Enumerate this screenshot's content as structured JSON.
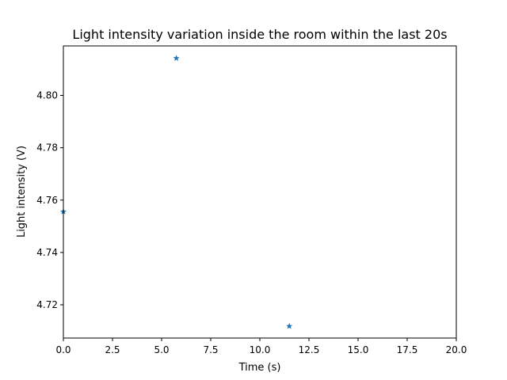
{
  "chart_data": {
    "type": "scatter",
    "title": "Light intensity variation inside the room within the last 20s",
    "xlabel": "Time (s)",
    "ylabel": "Light intensity (V)",
    "xlim": [
      0,
      20
    ],
    "ylim": [
      4.7073,
      4.8189
    ],
    "x_ticks": [
      "0.0",
      "2.5",
      "5.0",
      "7.5",
      "10.0",
      "12.5",
      "15.0",
      "17.5",
      "20.0"
    ],
    "y_ticks": [
      "4.72",
      "4.74",
      "4.76",
      "4.78",
      "4.80"
    ],
    "grid": false,
    "marker": "star",
    "color": "#1f77b4",
    "series": [
      {
        "x": [
          0.0,
          5.75,
          11.5
        ],
        "y": [
          4.7556,
          4.8142,
          4.7118
        ]
      }
    ]
  }
}
